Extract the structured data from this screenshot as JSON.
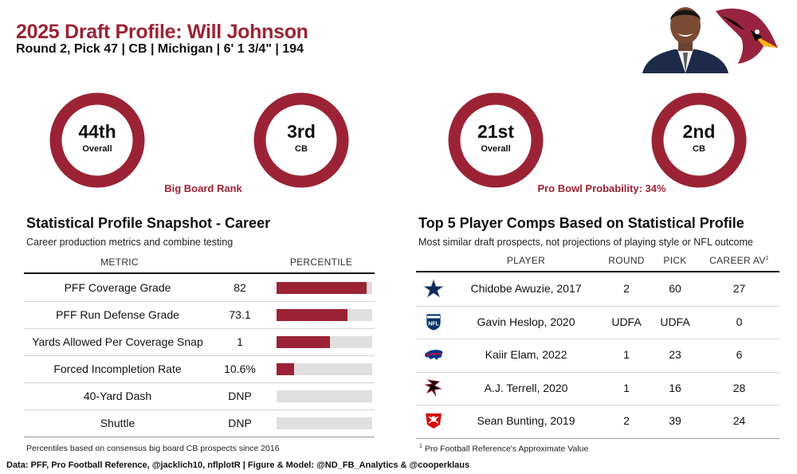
{
  "header": {
    "title": "2025 Draft Profile: Will Johnson",
    "subtitle": "Round 2, Pick 47 | CB | Michigan | 6' 1 3/4\" | 194"
  },
  "rings": [
    {
      "rank": "44th",
      "label": "Overall",
      "fill": 1.0
    },
    {
      "rank": "3rd",
      "label": "CB",
      "fill": 1.0
    },
    {
      "rank": "21st",
      "label": "Overall",
      "fill": 1.0
    },
    {
      "rank": "2nd",
      "label": "CB",
      "fill": 1.0
    }
  ],
  "captions": {
    "big_board": "Big Board Rank",
    "pro_bowl": "Pro Bowl Probability: 34%"
  },
  "stat_profile": {
    "title": "Statistical Profile Snapshot - Career",
    "subtitle": "Career production metrics and combine testing",
    "col_metric": "METRIC",
    "col_percentile": "PERCENTILE",
    "rows": [
      {
        "metric": "PFF Coverage Grade",
        "value": "82",
        "percentile": 0.94
      },
      {
        "metric": "PFF Run Defense Grade",
        "value": "73.1",
        "percentile": 0.74
      },
      {
        "metric": "Yards Allowed Per Coverage Snap",
        "value": "1",
        "percentile": 0.56
      },
      {
        "metric": "Forced Incompletion Rate",
        "value": "10.6%",
        "percentile": 0.18
      },
      {
        "metric": "40-Yard Dash",
        "value": "DNP",
        "percentile": 0
      },
      {
        "metric": "Shuttle",
        "value": "DNP",
        "percentile": 0
      }
    ],
    "footnote": "Percentiles based on consensus big board CB prospects since 2016"
  },
  "comps": {
    "title": "Top 5 Player Comps Based on Statistical Profile",
    "subtitle": "Most similar draft prospects, not projections of playing style or NFL outcome",
    "col_player": "PLAYER",
    "col_round": "ROUND",
    "col_pick": "PICK",
    "col_av": "CAREER AV",
    "av_mark": "1",
    "rows": [
      {
        "team_icon": "cowboys-star-icon",
        "player": "Chidobe Awuzie, 2017",
        "round": "2",
        "pick": "60",
        "av": "27"
      },
      {
        "team_icon": "nfl-shield-icon",
        "player": "Gavin Heslop, 2020",
        "round": "UDFA",
        "pick": "UDFA",
        "av": "0"
      },
      {
        "team_icon": "bills-buffalo-icon",
        "player": "Kaiir Elam, 2022",
        "round": "1",
        "pick": "23",
        "av": "6"
      },
      {
        "team_icon": "falcons-icon",
        "player": "A.J. Terrell, 2020",
        "round": "1",
        "pick": "16",
        "av": "28"
      },
      {
        "team_icon": "buccaneers-flag-icon",
        "player": "Sean Bunting, 2019",
        "round": "2",
        "pick": "39",
        "av": "24"
      }
    ],
    "footnote_mark": "1",
    "footnote": " Pro Football Reference's Approximate Value"
  },
  "credits": "Data: PFF, Pro Football Reference, @jacklich10, nflplotR | Figure & Model: @ND_FB_Analytics & @cooperklaus",
  "colors": {
    "accent": "#9b2335",
    "bar_bg": "#e0e0e0"
  }
}
